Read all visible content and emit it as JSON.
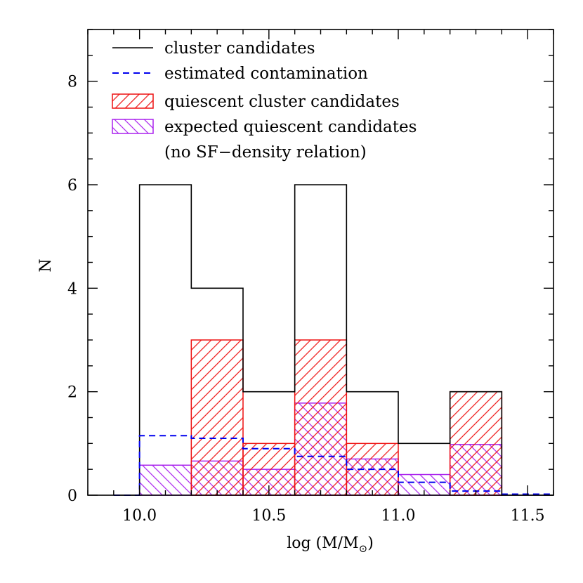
{
  "chart_data": {
    "type": "bar",
    "xlabel": "log (M/M",
    "xlabel_sub": "⊙",
    "xlabel_end": ")",
    "ylabel": "N",
    "xlim": [
      9.8,
      11.6
    ],
    "ylim": [
      0,
      9
    ],
    "x_ticks": [
      "10.0",
      "10.5",
      "11.0",
      "11.5"
    ],
    "y_ticks": [
      "0",
      "2",
      "4",
      "6",
      "8"
    ],
    "bin_edges": [
      9.9,
      10.0,
      10.2,
      10.4,
      10.6,
      10.8,
      11.0,
      11.2,
      11.4,
      11.6
    ],
    "series": [
      {
        "name": "cluster candidates",
        "values": [
          0,
          6,
          4,
          2,
          6,
          2,
          1,
          2,
          0
        ]
      },
      {
        "name": "estimated contamination",
        "values": [
          0,
          1.15,
          1.1,
          0.9,
          0.75,
          0.5,
          0.25,
          0.08,
          0.02
        ]
      },
      {
        "name": "quiescent cluster candidates",
        "values": [
          0,
          0,
          3,
          1,
          3,
          1,
          0,
          2,
          0
        ]
      },
      {
        "name": "expected quiescent candidates",
        "values": [
          0,
          0.58,
          0.66,
          0.5,
          1.78,
          0.7,
          0.4,
          0.98,
          0
        ]
      }
    ],
    "legend": {
      "placement": "top-left",
      "entries": [
        "cluster candidates",
        "estimated contamination",
        "quiescent cluster candidates",
        "expected quiescent candidates",
        "(no SF−density relation)"
      ]
    },
    "colors": {
      "cluster": "#000000",
      "contamination": "#0000ee",
      "quiescent": "#ee1111",
      "expected": "#aa22ee"
    }
  }
}
